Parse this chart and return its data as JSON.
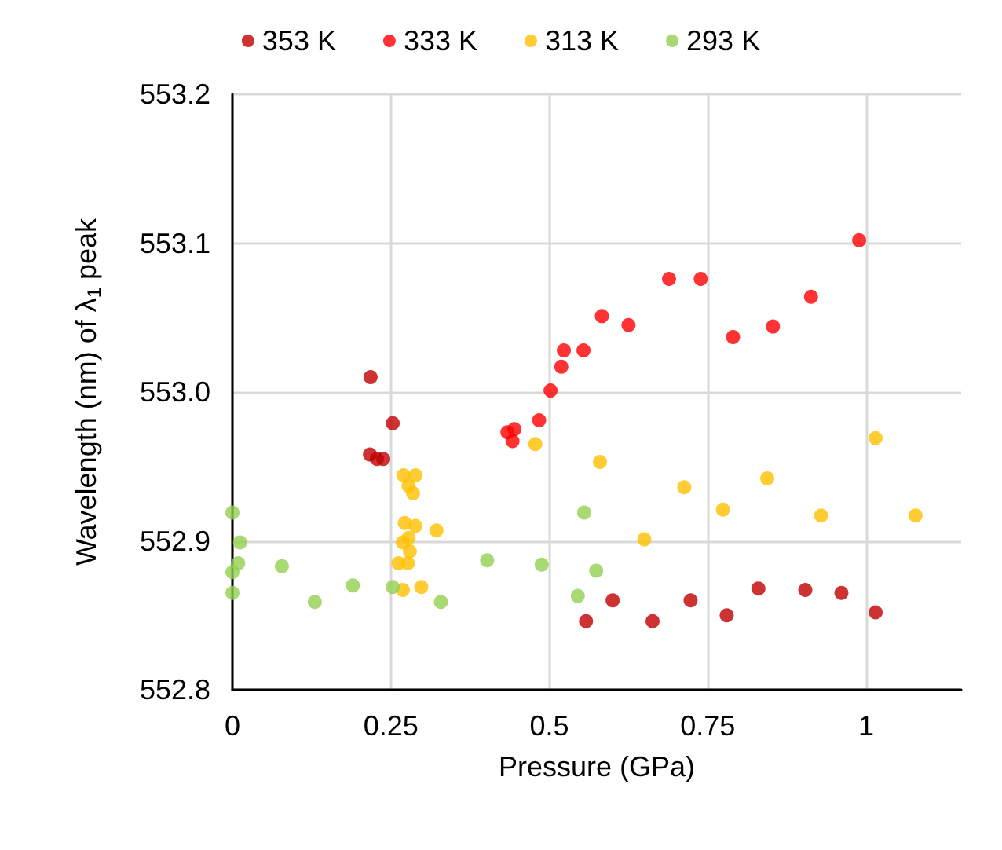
{
  "chart_data": {
    "type": "scatter",
    "xlabel": "Pressure (GPa)",
    "ylabel": "Wavelength (nm) of λ$_{1}$ peak",
    "xlim": [
      0,
      1.15
    ],
    "xticks": [
      0,
      0.25,
      0.5,
      0.75,
      1
    ],
    "ylim": [
      552.8,
      553.2
    ],
    "yticks": [
      552.8,
      552.9,
      {
        "value": 553.0,
        "label": "553.0"
      },
      553.1,
      553.2
    ],
    "grid": true,
    "legend": "top",
    "marker": "circle",
    "series": [
      {
        "name": "353 K",
        "color": "#c00000",
        "x": [
          0.218,
          0.253,
          0.217,
          0.228,
          0.238,
          0.558,
          0.6,
          0.663,
          0.723,
          0.78,
          0.83,
          0.904,
          0.961,
          1.015
        ],
        "values": [
          553.01,
          552.979,
          552.958,
          552.955,
          552.955,
          552.846,
          552.86,
          552.846,
          552.86,
          552.85,
          552.868,
          552.867,
          552.865,
          552.852
        ]
      },
      {
        "name": "333 K",
        "color": "#ff0000",
        "x": [
          0.434,
          0.442,
          0.445,
          0.484,
          0.502,
          0.519,
          0.523,
          0.554,
          0.583,
          0.625,
          0.689,
          0.739,
          0.79,
          0.853,
          0.913,
          0.989
        ],
        "values": [
          552.973,
          552.967,
          552.975,
          552.981,
          553.001,
          553.017,
          553.028,
          553.028,
          553.051,
          553.045,
          553.076,
          553.076,
          553.037,
          553.044,
          553.064,
          553.102
        ]
      },
      {
        "name": "313 K",
        "color": "#ffc000",
        "x": [
          0.478,
          0.27,
          0.289,
          0.278,
          0.285,
          0.272,
          0.289,
          0.322,
          0.278,
          0.269,
          0.28,
          0.262,
          0.277,
          0.269,
          0.298,
          0.58,
          0.713,
          0.65,
          0.774,
          0.844,
          0.929,
          1.015,
          1.078
        ],
        "values": [
          552.965,
          552.944,
          552.944,
          552.937,
          552.932,
          552.912,
          552.91,
          552.907,
          552.902,
          552.899,
          552.893,
          552.885,
          552.885,
          552.867,
          552.869,
          552.953,
          552.936,
          552.901,
          552.921,
          552.942,
          552.917,
          552.969,
          552.917
        ]
      },
      {
        "name": "293 K",
        "color": "#92d050",
        "x": [
          0.0,
          0.012,
          0.009,
          0.0,
          0.0,
          0.078,
          0.13,
          0.19,
          0.253,
          0.329,
          0.402,
          0.488,
          0.555,
          0.574,
          0.545
        ],
        "values": [
          552.919,
          552.899,
          552.885,
          552.879,
          552.865,
          552.883,
          552.859,
          552.87,
          552.869,
          552.859,
          552.887,
          552.884,
          552.919,
          552.88,
          552.863
        ]
      }
    ]
  }
}
